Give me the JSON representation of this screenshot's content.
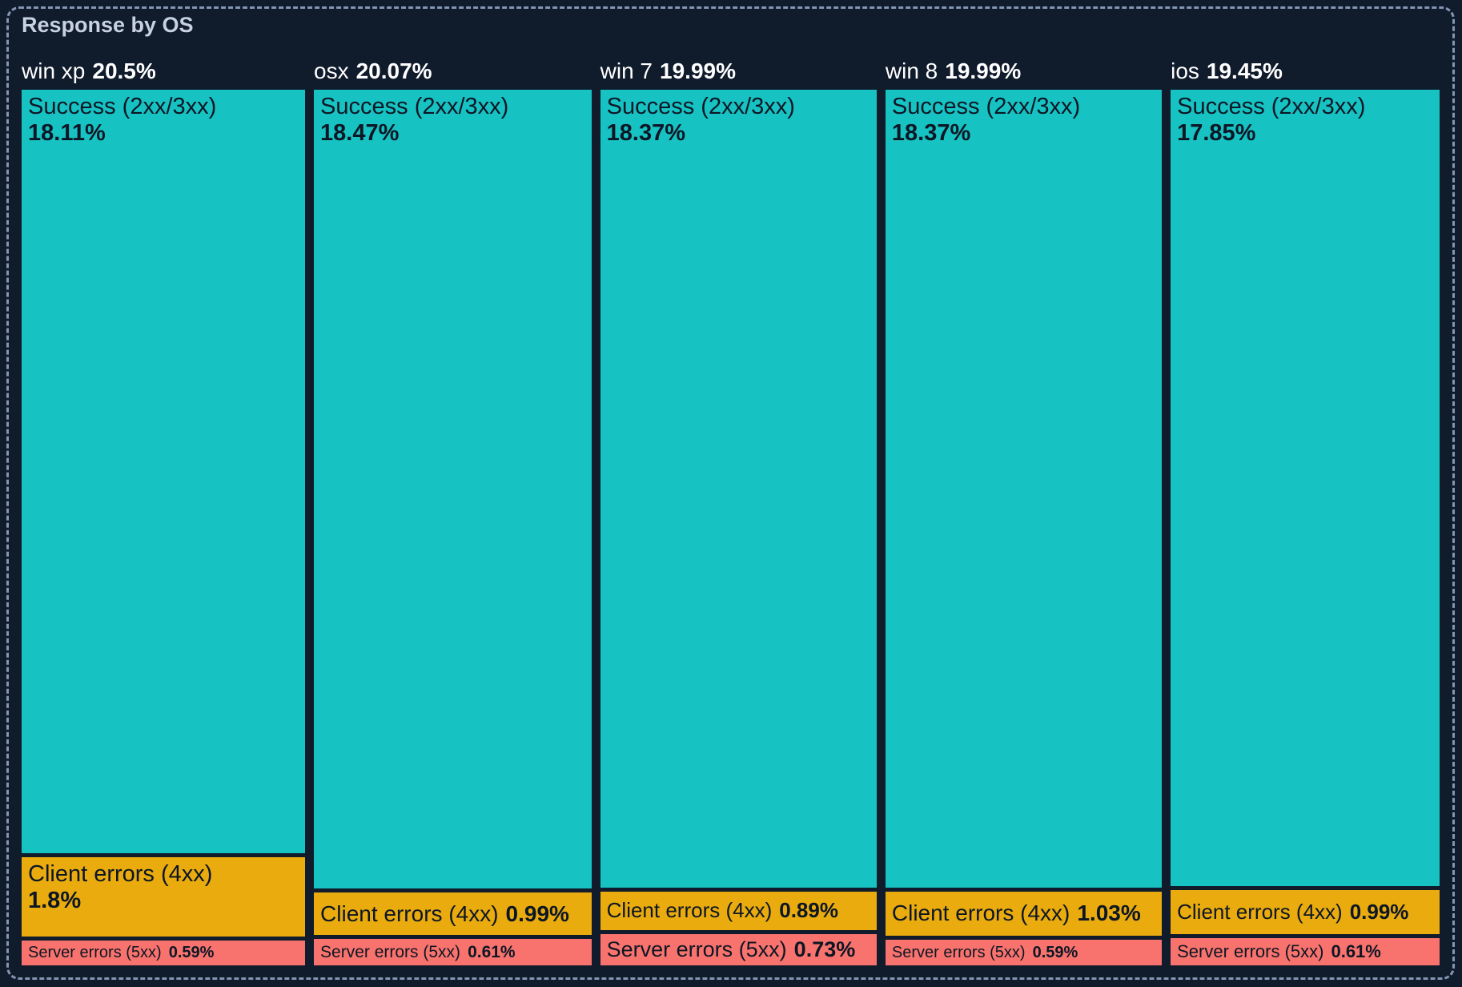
{
  "panel": {
    "title": "Response by OS"
  },
  "colors": {
    "background": "#101b2c",
    "dashed_border": "#8496b3",
    "title_text": "#c7d1df",
    "header_text": "#ffffff",
    "segment_text": "#0d1624",
    "success": "#17c2c2",
    "client_errors": "#e9ab0e",
    "server_errors": "#f8736d"
  },
  "chart_data": {
    "type": "treemap",
    "title": "Response by OS",
    "unit": "%",
    "legend": "none",
    "groups": [
      {
        "name": "win xp",
        "total_pct": 20.5,
        "total_label": "20.5%",
        "segments": [
          {
            "label": "Success (2xx/3xx)",
            "pct": 18.11,
            "pct_label": "18.11%",
            "category": "success"
          },
          {
            "label": "Client errors (4xx)",
            "pct": 1.8,
            "pct_label": "1.8%",
            "category": "client_errors"
          },
          {
            "label": "Server errors (5xx)",
            "pct": 0.59,
            "pct_label": "0.59%",
            "category": "server_errors"
          }
        ]
      },
      {
        "name": "osx",
        "total_pct": 20.07,
        "total_label": "20.07%",
        "segments": [
          {
            "label": "Success (2xx/3xx)",
            "pct": 18.47,
            "pct_label": "18.47%",
            "category": "success"
          },
          {
            "label": "Client errors (4xx)",
            "pct": 0.99,
            "pct_label": "0.99%",
            "category": "client_errors"
          },
          {
            "label": "Server errors (5xx)",
            "pct": 0.61,
            "pct_label": "0.61%",
            "category": "server_errors"
          }
        ]
      },
      {
        "name": "win 7",
        "total_pct": 19.99,
        "total_label": "19.99%",
        "segments": [
          {
            "label": "Success (2xx/3xx)",
            "pct": 18.37,
            "pct_label": "18.37%",
            "category": "success"
          },
          {
            "label": "Client errors (4xx)",
            "pct": 0.89,
            "pct_label": "0.89%",
            "category": "client_errors"
          },
          {
            "label": "Server errors (5xx)",
            "pct": 0.73,
            "pct_label": "0.73%",
            "category": "server_errors"
          }
        ]
      },
      {
        "name": "win 8",
        "total_pct": 19.99,
        "total_label": "19.99%",
        "segments": [
          {
            "label": "Success (2xx/3xx)",
            "pct": 18.37,
            "pct_label": "18.37%",
            "category": "success"
          },
          {
            "label": "Client errors (4xx)",
            "pct": 1.03,
            "pct_label": "1.03%",
            "category": "client_errors"
          },
          {
            "label": "Server errors (5xx)",
            "pct": 0.59,
            "pct_label": "0.59%",
            "category": "server_errors"
          }
        ]
      },
      {
        "name": "ios",
        "total_pct": 19.45,
        "total_label": "19.45%",
        "segments": [
          {
            "label": "Success (2xx/3xx)",
            "pct": 17.85,
            "pct_label": "17.85%",
            "category": "success"
          },
          {
            "label": "Client errors (4xx)",
            "pct": 0.99,
            "pct_label": "0.99%",
            "category": "client_errors"
          },
          {
            "label": "Server errors (5xx)",
            "pct": 0.61,
            "pct_label": "0.61%",
            "category": "server_errors"
          }
        ]
      }
    ]
  }
}
